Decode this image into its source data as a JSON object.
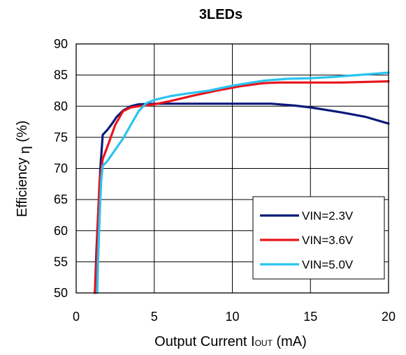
{
  "chart_data": {
    "type": "line",
    "title": "3LEDs",
    "xlabel": {
      "main": "Output Current I",
      "sub": "OUT",
      "unit": " (mA)"
    },
    "ylabel": {
      "main": "Efficiency ",
      "symbol": "η",
      "unit": " (%)"
    },
    "xlim": [
      0,
      20
    ],
    "ylim": [
      50,
      90
    ],
    "xticks": [
      0,
      5,
      10,
      15,
      20
    ],
    "yticks": [
      50,
      55,
      60,
      65,
      70,
      75,
      80,
      85,
      90
    ],
    "grid": true,
    "legend_position": "bottom-right",
    "series": [
      {
        "name": "VIN=2.3V",
        "color": "#0a1a7a",
        "points": [
          [
            1.2,
            50
          ],
          [
            1.3,
            57
          ],
          [
            1.45,
            65
          ],
          [
            1.55,
            70
          ],
          [
            1.7,
            75.4
          ],
          [
            2.0,
            76.2
          ],
          [
            2.3,
            77.2
          ],
          [
            2.6,
            78.3
          ],
          [
            3.0,
            79.3
          ],
          [
            3.5,
            80.0
          ],
          [
            4.0,
            80.3
          ],
          [
            5.0,
            80.4
          ],
          [
            8.0,
            80.4
          ],
          [
            10.0,
            80.4
          ],
          [
            12.0,
            80.4
          ],
          [
            12.5,
            80.4
          ],
          [
            14.0,
            80.1
          ],
          [
            15.0,
            79.8
          ],
          [
            17.0,
            79.0
          ],
          [
            18.5,
            78.3
          ],
          [
            20.0,
            77.2
          ]
        ]
      },
      {
        "name": "VIN=3.6V",
        "color": "#e8141c",
        "points": [
          [
            1.2,
            50
          ],
          [
            1.3,
            55
          ],
          [
            1.4,
            62
          ],
          [
            1.5,
            68
          ],
          [
            1.7,
            71.5
          ],
          [
            2.0,
            73.5
          ],
          [
            2.5,
            77
          ],
          [
            3.0,
            79.2
          ],
          [
            3.5,
            79.8
          ],
          [
            4.0,
            80.0
          ],
          [
            5.0,
            80.3
          ],
          [
            6.0,
            80.8
          ],
          [
            7.5,
            81.7
          ],
          [
            9.0,
            82.5
          ],
          [
            10.5,
            83.2
          ],
          [
            12.0,
            83.7
          ],
          [
            13.0,
            83.8
          ],
          [
            15.0,
            83.8
          ],
          [
            17.0,
            83.8
          ],
          [
            20.0,
            84.0
          ]
        ]
      },
      {
        "name": "VIN=5.0V",
        "color": "#29c4f0",
        "points": [
          [
            1.35,
            50
          ],
          [
            1.4,
            55
          ],
          [
            1.5,
            62
          ],
          [
            1.6,
            68
          ],
          [
            1.7,
            70.4
          ],
          [
            2.0,
            71.2
          ],
          [
            2.5,
            73.0
          ],
          [
            3.0,
            74.8
          ],
          [
            3.5,
            77.0
          ],
          [
            4.0,
            79.2
          ],
          [
            4.5,
            80.5
          ],
          [
            5.0,
            81.0
          ],
          [
            6.0,
            81.6
          ],
          [
            7.0,
            82.0
          ],
          [
            8.5,
            82.5
          ],
          [
            10.0,
            83.3
          ],
          [
            12.0,
            84.1
          ],
          [
            13.5,
            84.4
          ],
          [
            15.0,
            84.5
          ],
          [
            16.5,
            84.7
          ],
          [
            18.0,
            85.0
          ],
          [
            20.0,
            85.4
          ]
        ]
      }
    ]
  }
}
